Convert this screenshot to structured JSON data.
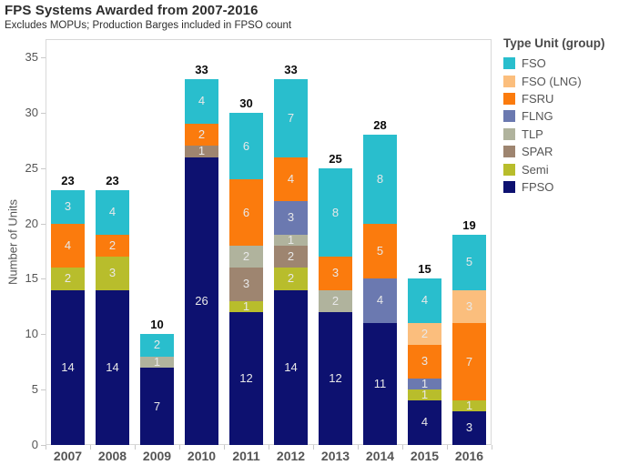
{
  "chart_data": {
    "type": "bar",
    "stacked": true,
    "title": "FPS Systems Awarded from 2007-2016",
    "subtitle": "Excludes MOPUs; Production Barges included in FPSO count",
    "ylabel": "Number of Units",
    "xlabel": "",
    "ylim": [
      0,
      35
    ],
    "yticks": [
      0,
      5,
      10,
      15,
      20,
      25,
      30,
      35
    ],
    "grid": false,
    "legend_title": "Type Unit (group)",
    "legend_position": "right",
    "legend_order_top_to_bottom": [
      "FSO",
      "FSO (LNG)",
      "FSRU",
      "FLNG",
      "TLP",
      "SPAR",
      "Semi",
      "FPSO"
    ],
    "categories": [
      "2007",
      "2008",
      "2009",
      "2010",
      "2011",
      "2012",
      "2013",
      "2014",
      "2015",
      "2016"
    ],
    "series": [
      {
        "name": "FPSO",
        "color": "#0d1170",
        "values": [
          14,
          14,
          7,
          26,
          12,
          14,
          12,
          11,
          4,
          3
        ]
      },
      {
        "name": "Semi",
        "color": "#b8bd2c",
        "values": [
          2,
          3,
          0,
          0,
          1,
          2,
          0,
          0,
          1,
          1
        ]
      },
      {
        "name": "SPAR",
        "color": "#9e8570",
        "values": [
          0,
          0,
          0,
          1,
          3,
          2,
          0,
          0,
          0,
          0
        ]
      },
      {
        "name": "TLP",
        "color": "#b0b39d",
        "values": [
          0,
          0,
          1,
          0,
          2,
          1,
          2,
          0,
          0,
          0
        ]
      },
      {
        "name": "FLNG",
        "color": "#6b79b0",
        "values": [
          0,
          0,
          0,
          0,
          0,
          3,
          0,
          4,
          1,
          0
        ]
      },
      {
        "name": "FSRU",
        "color": "#fb7b0d",
        "values": [
          4,
          2,
          0,
          2,
          6,
          4,
          3,
          5,
          3,
          7
        ]
      },
      {
        "name": "FSO (LNG)",
        "color": "#fbbe7d",
        "values": [
          0,
          0,
          0,
          0,
          0,
          0,
          0,
          0,
          2,
          3
        ]
      },
      {
        "name": "FSO",
        "color": "#29becd",
        "values": [
          3,
          4,
          2,
          4,
          6,
          7,
          8,
          8,
          4,
          5
        ]
      }
    ],
    "totals": [
      23,
      23,
      10,
      33,
      30,
      33,
      25,
      28,
      15,
      19
    ]
  }
}
